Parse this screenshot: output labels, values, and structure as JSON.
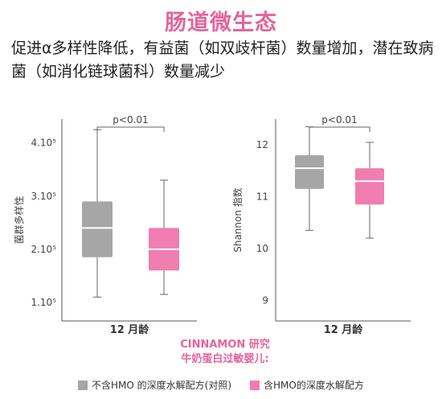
{
  "header": {
    "title": "肠道微生态",
    "subtitle": "促进α多样性降低，有益菌（如双歧杆菌）数量增加，潜在致病菌（如消化链球菌科）数量减少"
  },
  "caption": {
    "line1": "CINNAMON 研究",
    "line2": "牛奶蛋白过敏婴儿:"
  },
  "legend": [
    {
      "label": "不含HMO 的深度水解配方(对照)",
      "color": "#a6a6a6"
    },
    {
      "label": "含HMO的深度水解配方",
      "color": "#f07db0"
    }
  ],
  "colors": {
    "control": "#a6a6a6",
    "hmo": "#f07db0",
    "median_line": "#ffffff"
  },
  "chart_data": [
    {
      "type": "box",
      "ylabel": "菌群多样性",
      "xlabel": "12 月龄",
      "yticks": [
        {
          "value": 1.1,
          "label": "1.10⁵"
        },
        {
          "value": 2.1,
          "label": "2.10⁵"
        },
        {
          "value": 3.1,
          "label": "3.10⁵"
        },
        {
          "value": 4.1,
          "label": "4.10⁵"
        }
      ],
      "ylim": [
        0.75,
        4.55
      ],
      "significance": "p<0.01",
      "series": [
        {
          "min": 1.2,
          "q1": 1.95,
          "median": 2.5,
          "q3": 3.0,
          "max": 4.35
        },
        {
          "min": 1.25,
          "q1": 1.7,
          "median": 2.1,
          "q3": 2.5,
          "max": 3.4
        }
      ]
    },
    {
      "type": "box",
      "ylabel": "Shannon 指数",
      "xlabel": "12 月龄",
      "yticks": [
        {
          "value": 9,
          "label": "9"
        },
        {
          "value": 10,
          "label": "10"
        },
        {
          "value": 11,
          "label": "11"
        },
        {
          "value": 12,
          "label": "12"
        }
      ],
      "ylim": [
        8.6,
        12.5
      ],
      "significance": "p<0.01",
      "series": [
        {
          "min": 10.35,
          "q1": 11.15,
          "median": 11.55,
          "q3": 11.8,
          "max": 12.35
        },
        {
          "min": 10.2,
          "q1": 10.85,
          "median": 11.3,
          "q3": 11.55,
          "max": 12.05
        }
      ]
    }
  ]
}
